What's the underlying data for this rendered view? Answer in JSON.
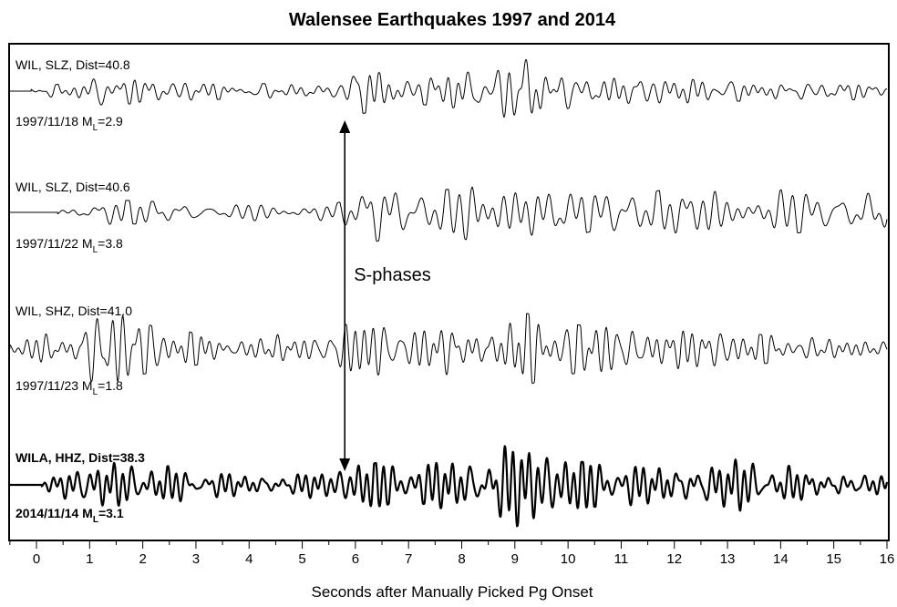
{
  "chart_data": {
    "type": "line",
    "title": "Walensee Earthquakes 1997 and 2014",
    "xlabel": "Seconds after Manually Picked Pg Onset",
    "ylabel": "",
    "xlim": [
      -0.5,
      16
    ],
    "x_ticks": [
      "0",
      "1",
      "2",
      "3",
      "4",
      "5",
      "6",
      "7",
      "8",
      "9",
      "10",
      "11",
      "12",
      "13",
      "14",
      "15",
      "16"
    ],
    "grid": false,
    "annotation": {
      "text": "S-phases",
      "arrow_x": 5.8
    },
    "traces": [
      {
        "station": "WIL, SLZ, Dist=40.8",
        "date_prefix": "1997/11/18 M",
        "mag_sub": "L",
        "mag_suffix": "=2.9",
        "bold": false,
        "onset_x": -0.1,
        "envelope": [
          [
            -0.1,
            0.08
          ],
          [
            0.5,
            0.22
          ],
          [
            1.0,
            0.35
          ],
          [
            1.3,
            0.5
          ],
          [
            2.0,
            0.3
          ],
          [
            3.0,
            0.25
          ],
          [
            4.0,
            0.22
          ],
          [
            5.6,
            0.2
          ],
          [
            5.8,
            0.35
          ],
          [
            6.0,
            0.7
          ],
          [
            6.4,
            0.55
          ],
          [
            7.0,
            0.35
          ],
          [
            8.0,
            0.5
          ],
          [
            8.6,
            0.75
          ],
          [
            8.9,
            1.0
          ],
          [
            9.4,
            0.85
          ],
          [
            10.0,
            0.5
          ],
          [
            11.0,
            0.35
          ],
          [
            12.0,
            0.35
          ],
          [
            13.0,
            0.3
          ],
          [
            14.0,
            0.25
          ],
          [
            15.0,
            0.25
          ],
          [
            16.0,
            0.25
          ]
        ]
      },
      {
        "station": "WIL, SLZ, Dist=40.6",
        "date_prefix": "1997/11/22 M",
        "mag_sub": "L",
        "mag_suffix": "=3.8",
        "bold": false,
        "onset_x": 0.4,
        "envelope": [
          [
            0.4,
            0.06
          ],
          [
            1.0,
            0.25
          ],
          [
            1.5,
            0.3
          ],
          [
            2.5,
            0.25
          ],
          [
            4.0,
            0.2
          ],
          [
            5.6,
            0.2
          ],
          [
            5.9,
            0.35
          ],
          [
            6.3,
            0.75
          ],
          [
            7.0,
            0.45
          ],
          [
            8.0,
            0.6
          ],
          [
            8.3,
            0.85
          ],
          [
            9.0,
            1.0
          ],
          [
            9.6,
            0.7
          ],
          [
            10.5,
            0.45
          ],
          [
            11.5,
            0.45
          ],
          [
            12.0,
            0.65
          ],
          [
            13.0,
            0.55
          ],
          [
            14.0,
            0.55
          ],
          [
            15.0,
            0.4
          ],
          [
            16.0,
            0.5
          ]
        ]
      },
      {
        "station": "WIL, SHZ, Dist=41.0",
        "date_prefix": "1997/11/23 M",
        "mag_sub": "L",
        "mag_suffix": "=1.8",
        "bold": false,
        "onset_x": -0.5,
        "envelope": [
          [
            -0.5,
            0.1
          ],
          [
            0.5,
            0.5
          ],
          [
            1.0,
            0.7
          ],
          [
            1.5,
            0.8
          ],
          [
            2.0,
            0.55
          ],
          [
            3.0,
            0.35
          ],
          [
            4.0,
            0.3
          ],
          [
            5.5,
            0.35
          ],
          [
            6.0,
            0.65
          ],
          [
            6.5,
            0.55
          ],
          [
            7.0,
            0.45
          ],
          [
            8.0,
            0.6
          ],
          [
            9.0,
            0.85
          ],
          [
            9.5,
            0.7
          ],
          [
            10.0,
            0.55
          ],
          [
            11.0,
            0.45
          ],
          [
            11.9,
            0.6
          ],
          [
            13.0,
            0.35
          ],
          [
            14.0,
            0.3
          ],
          [
            15.0,
            0.25
          ],
          [
            16.0,
            0.25
          ]
        ]
      },
      {
        "station": "WILA, HHZ, Dist=38.3",
        "date_prefix": "2014/11/14 M",
        "mag_sub": "L",
        "mag_suffix": "=3.1",
        "bold": true,
        "onset_x": 0.1,
        "envelope": [
          [
            0.1,
            0.1
          ],
          [
            0.6,
            0.45
          ],
          [
            1.0,
            0.55
          ],
          [
            1.3,
            0.6
          ],
          [
            2.0,
            0.5
          ],
          [
            3.0,
            0.35
          ],
          [
            4.0,
            0.3
          ],
          [
            5.5,
            0.3
          ],
          [
            6.0,
            0.45
          ],
          [
            6.4,
            0.5
          ],
          [
            7.0,
            0.35
          ],
          [
            8.0,
            0.65
          ],
          [
            8.5,
            0.8
          ],
          [
            8.9,
            1.0
          ],
          [
            9.4,
            0.8
          ],
          [
            10.0,
            0.55
          ],
          [
            11.0,
            0.45
          ],
          [
            12.0,
            0.55
          ],
          [
            12.8,
            0.65
          ],
          [
            13.5,
            0.6
          ],
          [
            14.0,
            0.45
          ],
          [
            15.0,
            0.35
          ],
          [
            16.0,
            0.3
          ]
        ]
      }
    ]
  }
}
